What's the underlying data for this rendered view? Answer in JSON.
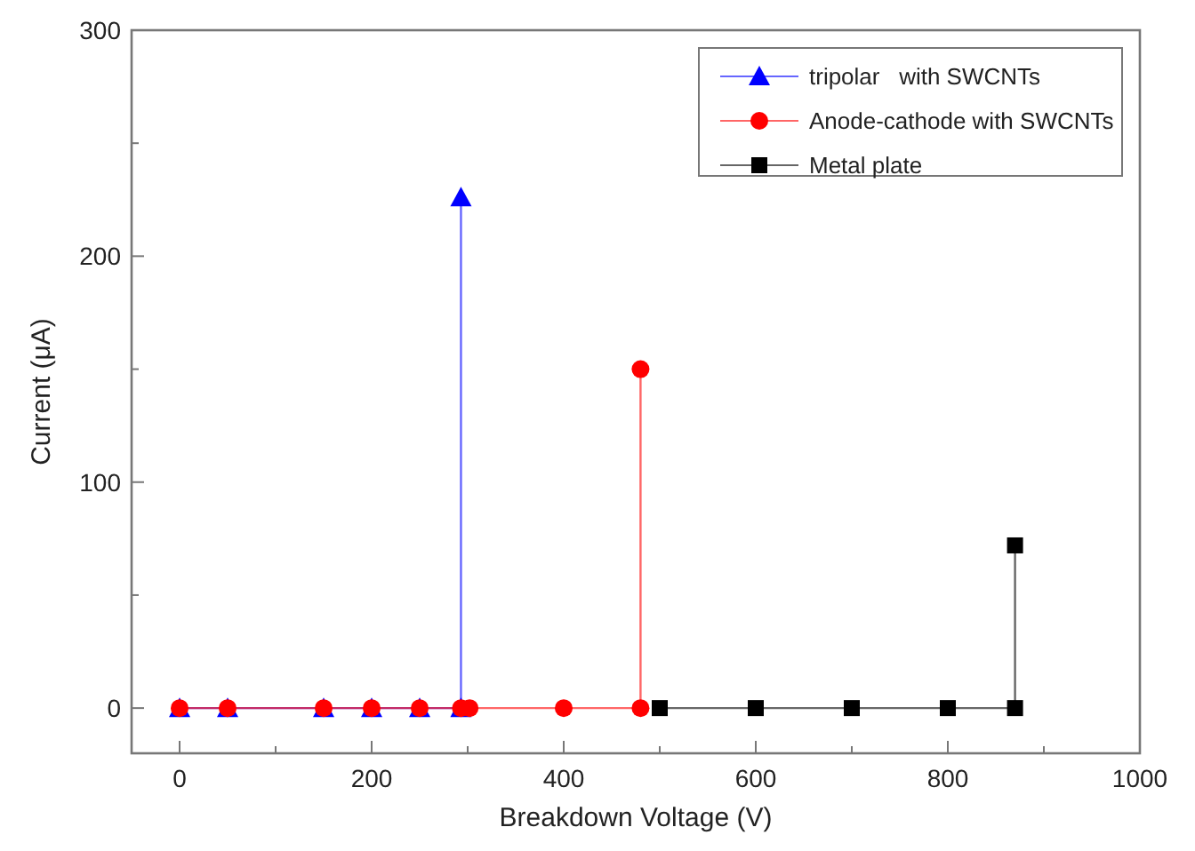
{
  "chart_data": {
    "type": "line",
    "xlabel": "Breakdown Voltage (V)",
    "ylabel": "Current (μA)",
    "xlim": [
      -50,
      1000
    ],
    "ylim": [
      -20,
      300
    ],
    "xticks": [
      0,
      {
        "value": 100,
        "label": null
      },
      200,
      {
        "value": 300,
        "label": null
      },
      400,
      {
        "value": 500,
        "label": null
      },
      600,
      {
        "value": 700,
        "label": null
      },
      800,
      {
        "value": 900,
        "label": null
      },
      1000
    ],
    "yticks": [
      0,
      {
        "value": 50,
        "label": null
      },
      100,
      {
        "value": 150,
        "label": null
      },
      200,
      {
        "value": 250,
        "label": null
      },
      300
    ],
    "series": [
      {
        "name": "tripolar   with SWCNTs",
        "color": "#0000ff",
        "marker": "triangle",
        "x": [
          0,
          50,
          150,
          200,
          250,
          293,
          293
        ],
        "values": [
          0,
          0,
          0,
          0,
          0,
          0,
          226
        ]
      },
      {
        "name": "Anode-cathode with SWCNTs",
        "color": "#ff0000",
        "marker": "circle",
        "x": [
          0,
          50,
          150,
          200,
          250,
          293,
          302,
          400,
          480,
          480
        ],
        "values": [
          0,
          0,
          0,
          0,
          0,
          0,
          0,
          0,
          0,
          150
        ]
      },
      {
        "name": "Metal plate",
        "color": "#000000",
        "marker": "square",
        "x": [
          500,
          600,
          700,
          800,
          870,
          870
        ],
        "values": [
          0,
          0,
          0,
          0,
          0,
          72
        ]
      }
    ],
    "legend": "top right",
    "grid": false
  }
}
